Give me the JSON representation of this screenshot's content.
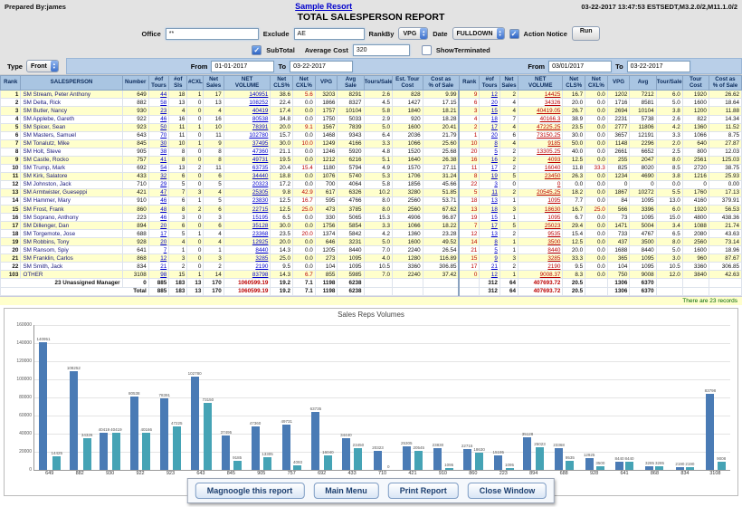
{
  "header": {
    "prepared_by": "Prepared By:james",
    "resort_link": "Sample Resort",
    "timestamp": "03-22-2017 13:47:53 ESTSEDT,M3.2.0/2,M11.1.0/2",
    "title": "TOTAL SALESPERSON REPORT"
  },
  "controls": {
    "office_label": "Office",
    "office_value": "**",
    "exclude_label": "Exclude",
    "exclude_value": "AE",
    "rankby_label": "RankBy",
    "rankby_value": "VPG",
    "date_label": "Date",
    "date_value": "FULLDOWN",
    "action_notice_label": "Action Notice",
    "action_notice_checked": true,
    "run_label": "Run",
    "subtotal_label": "SubTotal",
    "subtotal_checked": true,
    "average_cost_label": "Average Cost",
    "average_cost_value": "320",
    "show_terminated_label": "ShowTerminated",
    "show_terminated_checked": false,
    "type_label": "Type",
    "type_value": "Front",
    "period1": {
      "from_label": "From",
      "from": "01-01-2017",
      "to_label": "To",
      "to": "03-22-2017"
    },
    "period2": {
      "from_label": "From",
      "from": "03/01/2017",
      "to_label": "To",
      "to": "03-22-2017"
    }
  },
  "table": {
    "headers_left": [
      "Rank",
      "SALESPERSON",
      "Number",
      "#of\nTours",
      "#of\nSls",
      "#CXL",
      "Net\nSales",
      "NET\nVOLUME",
      "Net\nCLS%",
      "Net\nCXL%",
      "VPG",
      "Avg\nSale",
      "Tours/Sale",
      "Est. Tour\nCost",
      "Cost as\n% of Sale"
    ],
    "headers_right": [
      "Rank",
      "#of\nTours",
      "Net\nSales",
      "NET\nVOLUME",
      "Net\nCLS%",
      "Net\nCXL%",
      "VPG",
      "Avg",
      "Tour/Sale",
      "Tour\nCost",
      "Cost as\n% of Sale"
    ],
    "rows": [
      [
        "1",
        "SM Stream, Peter Anthony",
        "649",
        "44",
        "18",
        "1",
        "17",
        "140951",
        "38.6",
        "5.6",
        "3203",
        "8291",
        "2.6",
        "828",
        "9.99",
        "9",
        "12",
        "2",
        "14425",
        "16.7",
        "0.0",
        "1202",
        "7212",
        "6.0",
        "1920",
        "26.62"
      ],
      [
        "2",
        "SM Delta, Rick",
        "882",
        "58",
        "13",
        "0",
        "13",
        "108252",
        "22.4",
        "0.0",
        "1866",
        "8327",
        "4.5",
        "1427",
        "17.15",
        "6",
        "20",
        "4",
        "34326",
        "20.0",
        "0.0",
        "1716",
        "8581",
        "5.0",
        "1600",
        "18.64"
      ],
      [
        "3",
        "SM Butler, Nancy",
        "930",
        "23",
        "4",
        "0",
        "4",
        "40419",
        "17.4",
        "0.0",
        "1757",
        "10104",
        "5.8",
        "1840",
        "18.21",
        "3",
        "15",
        "4",
        "40419.05",
        "26.7",
        "0.0",
        "2694",
        "10104",
        "3.8",
        "1200",
        "11.88"
      ],
      [
        "4",
        "SM Applebe, Gareth",
        "922",
        "46",
        "16",
        "0",
        "16",
        "80538",
        "34.8",
        "0.0",
        "1750",
        "5033",
        "2.9",
        "920",
        "18.28",
        "4",
        "18",
        "7",
        "40166.3",
        "38.9",
        "0.0",
        "2231",
        "5738",
        "2.6",
        "822",
        "14.34"
      ],
      [
        "5",
        "SM Spicer, Sean",
        "923",
        "50",
        "11",
        "1",
        "10",
        "78391",
        "20.0",
        "9.1",
        "1567",
        "7839",
        "5.0",
        "1600",
        "20.41",
        "2",
        "17",
        "4",
        "47225.25",
        "23.5",
        "0.0",
        "2777",
        "11806",
        "4.2",
        "1360",
        "11.52"
      ],
      [
        "6",
        "SM Masters, Samuel",
        "643",
        "70",
        "11",
        "0",
        "11",
        "102780",
        "15.7",
        "0.0",
        "1468",
        "9343",
        "6.4",
        "2036",
        "21.79",
        "1",
        "20",
        "6",
        "73150.25",
        "30.0",
        "0.0",
        "3657",
        "12191",
        "3.3",
        "1066",
        "8.75"
      ],
      [
        "7",
        "SM Tonalutz, Mike",
        "845",
        "30",
        "10",
        "1",
        "9",
        "37495",
        "30.0",
        "10.0",
        "1249",
        "4166",
        "3.3",
        "1066",
        "25.60",
        "10",
        "8",
        "4",
        "9185",
        "50.0",
        "0.0",
        "1148",
        "2296",
        "2.0",
        "640",
        "27.87"
      ],
      [
        "8",
        "SM Holt, Steve",
        "905",
        "38",
        "8",
        "0",
        "8",
        "47360",
        "21.1",
        "0.0",
        "1246",
        "5920",
        "4.8",
        "1520",
        "25.68",
        "20",
        "5",
        "2",
        "13305.25",
        "40.0",
        "0.0",
        "2661",
        "6652",
        "2.5",
        "800",
        "12.03"
      ],
      [
        "9",
        "SM Castle, Rocko",
        "757",
        "41",
        "8",
        "0",
        "8",
        "49731",
        "19.5",
        "0.0",
        "1212",
        "6216",
        "5.1",
        "1640",
        "26.38",
        "16",
        "16",
        "2",
        "4093",
        "12.5",
        "0.0",
        "255",
        "2047",
        "8.0",
        "2561",
        "125.03"
      ],
      [
        "10",
        "SM Trump, Mark",
        "692",
        "54",
        "13",
        "2",
        "11",
        "63735",
        "20.4",
        "15.4",
        "1180",
        "5794",
        "4.9",
        "1570",
        "27.11",
        "11",
        "17",
        "2",
        "16040",
        "11.8",
        "33.3",
        "825",
        "8020",
        "8.5",
        "2720",
        "38.75"
      ],
      [
        "11",
        "SM Kirk, Salatore",
        "433",
        "32",
        "6",
        "0",
        "6",
        "34440",
        "18.8",
        "0.0",
        "1076",
        "5740",
        "5.3",
        "1706",
        "31.24",
        "8",
        "19",
        "5",
        "23450",
        "26.3",
        "0.0",
        "1234",
        "4690",
        "3.8",
        "1216",
        "25.93"
      ],
      [
        "12",
        "SM Johnston, Jack",
        "710",
        "29",
        "5",
        "0",
        "5",
        "20323",
        "17.2",
        "0.0",
        "700",
        "4064",
        "5.8",
        "1856",
        "45.66",
        "22",
        "3",
        "0",
        "0",
        "0.0",
        "0.0",
        "0",
        "0",
        "0.0",
        "0",
        "0.00"
      ],
      [
        "13",
        "SM Armtwister, Gueseppi",
        "421",
        "47",
        "7",
        "3",
        "4",
        "25305",
        "9.8",
        "42.9",
        "617",
        "6326",
        "10.2",
        "3280",
        "51.85",
        "5",
        "11",
        "2",
        "20545.25",
        "18.2",
        "0.0",
        "1867",
        "10272",
        "5.5",
        "1760",
        "17.13"
      ],
      [
        "14",
        "SM Hammer, Mary",
        "910",
        "46",
        "6",
        "1",
        "5",
        "23830",
        "12.5",
        "16.7",
        "595",
        "4766",
        "8.0",
        "2560",
        "53.71",
        "18",
        "13",
        "1",
        "1095",
        "7.7",
        "0.0",
        "84",
        "1095",
        "13.0",
        "4160",
        "379.91"
      ],
      [
        "15",
        "SM Frost, Frank",
        "860",
        "48",
        "8",
        "2",
        "6",
        "22715",
        "12.5",
        "25.0",
        "473",
        "3785",
        "8.0",
        "2560",
        "67.62",
        "13",
        "18",
        "3",
        "18630",
        "16.7",
        "25.0",
        "566",
        "3396",
        "6.0",
        "1920",
        "56.53"
      ],
      [
        "16",
        "SM Soprano, Anthony",
        "223",
        "46",
        "3",
        "0",
        "3",
        "15195",
        "6.5",
        "0.0",
        "330",
        "5065",
        "15.3",
        "4906",
        "96.87",
        "19",
        "15",
        "1",
        "1095",
        "6.7",
        "0.0",
        "73",
        "1095",
        "15.0",
        "4800",
        "438.36"
      ],
      [
        "17",
        "SM Dillenger, Dan",
        "894",
        "20",
        "6",
        "0",
        "6",
        "35128",
        "30.0",
        "0.0",
        "1756",
        "5854",
        "3.3",
        "1066",
        "18.22",
        "7",
        "17",
        "5",
        "25023",
        "29.4",
        "0.0",
        "1471",
        "5004",
        "3.4",
        "1088",
        "21.74"
      ],
      [
        "18",
        "SM Torgemote, Jose",
        "688",
        "17",
        "5",
        "1",
        "4",
        "23368",
        "23.5",
        "20.0",
        "1374",
        "5842",
        "4.2",
        "1360",
        "23.28",
        "12",
        "13",
        "2",
        "9535",
        "15.4",
        "0.0",
        "733",
        "4767",
        "6.5",
        "2080",
        "43.63"
      ],
      [
        "19",
        "SM Robbins, Tony",
        "928",
        "20",
        "4",
        "0",
        "4",
        "12925",
        "20.0",
        "0.0",
        "646",
        "3231",
        "5.0",
        "1600",
        "49.52",
        "14",
        "8",
        "1",
        "3500",
        "12.5",
        "0.0",
        "437",
        "3500",
        "8.0",
        "2560",
        "73.14"
      ],
      [
        "20",
        "SM Ransom, Spiy",
        "641",
        "7",
        "1",
        "0",
        "1",
        "8440",
        "14.3",
        "0.0",
        "1205",
        "8440",
        "7.0",
        "2240",
        "26.54",
        "21",
        "5",
        "1",
        "8440",
        "20.0",
        "0.0",
        "1688",
        "8440",
        "5.0",
        "1600",
        "18.96"
      ],
      [
        "21",
        "SM Franklin, Carlos",
        "868",
        "12",
        "3",
        "0",
        "3",
        "3285",
        "25.0",
        "0.0",
        "273",
        "1095",
        "4.0",
        "1280",
        "116.89",
        "15",
        "9",
        "3",
        "3285",
        "33.3",
        "0.0",
        "365",
        "1095",
        "3.0",
        "960",
        "87.67"
      ],
      [
        "22",
        "SM Smith, Jack",
        "834",
        "21",
        "2",
        "0",
        "2",
        "2190",
        "9.5",
        "0.0",
        "104",
        "1095",
        "10.5",
        "3360",
        "306.85",
        "17",
        "21",
        "2",
        "2190",
        "9.5",
        "0.0",
        "104",
        "1095",
        "10.5",
        "3360",
        "306.85"
      ],
      [
        "103",
        "OTHER",
        "3108",
        "98",
        "15",
        "1",
        "14",
        "83798",
        "14.3",
        "6.7",
        "855",
        "5985",
        "7.0",
        "2240",
        "37.42",
        "0",
        "12",
        "1",
        "9008.37",
        "8.3",
        "0.0",
        "750",
        "9008",
        "12.0",
        "3840",
        "42.63"
      ]
    ],
    "subtotal": {
      "label": "23 Unassigned Manager",
      "number": "0",
      "left": [
        "885",
        "183",
        "13",
        "170",
        "1060599.19",
        "19.2",
        "7.1",
        "1198",
        "6238",
        "",
        "",
        ""
      ],
      "right": [
        "",
        "312",
        "64",
        "407693.72",
        "20.5",
        "",
        "1306",
        "6370",
        "",
        "",
        ""
      ]
    },
    "total": {
      "label": "Total",
      "left": [
        "885",
        "183",
        "13",
        "170",
        "1060599.19",
        "19.2",
        "7.1",
        "1198",
        "6238",
        "",
        "",
        ""
      ],
      "right": [
        "",
        "312",
        "64",
        "407693.72",
        "20.5",
        "",
        "1306",
        "6370",
        "",
        "",
        ""
      ]
    },
    "records_note": "There are 23 records"
  },
  "chart_data": {
    "type": "bar",
    "title": "Sales Reps Volumes",
    "categories": [
      "649",
      "882",
      "930",
      "922",
      "923",
      "643",
      "845",
      "905",
      "757",
      "692",
      "433",
      "710",
      "421",
      "910",
      "860",
      "223",
      "894",
      "688",
      "928",
      "641",
      "868",
      "834",
      "3108"
    ],
    "series": [
      {
        "name": "Period1",
        "values": [
          140951,
          108252,
          40419,
          80538,
          78391,
          102780,
          37495,
          47360,
          49731,
          63735,
          34440,
          20323,
          25305,
          23830,
          22715,
          15195,
          35128,
          23368,
          12925,
          8440,
          3285,
          2190,
          83798
        ]
      },
      {
        "name": "Period2",
        "values": [
          14425,
          34326,
          40419,
          40166,
          47225,
          73150,
          9185,
          13305,
          4093,
          16040,
          23450,
          0,
          20545,
          1095,
          18630,
          1095,
          25023,
          9535,
          3500,
          8440,
          3285,
          2190,
          9008
        ]
      }
    ],
    "xlabel": "",
    "ylabel": "",
    "ylim": [
      0,
      160000
    ],
    "ytick_step": 20000,
    "grid": true,
    "legend": "none",
    "colors": {
      "series1": "#4a7bb5",
      "series2": "#45a3b5"
    }
  },
  "footer": {
    "buttons": [
      "Magnoogle this report",
      "Main Menu",
      "Print Report",
      "Close Window"
    ]
  }
}
